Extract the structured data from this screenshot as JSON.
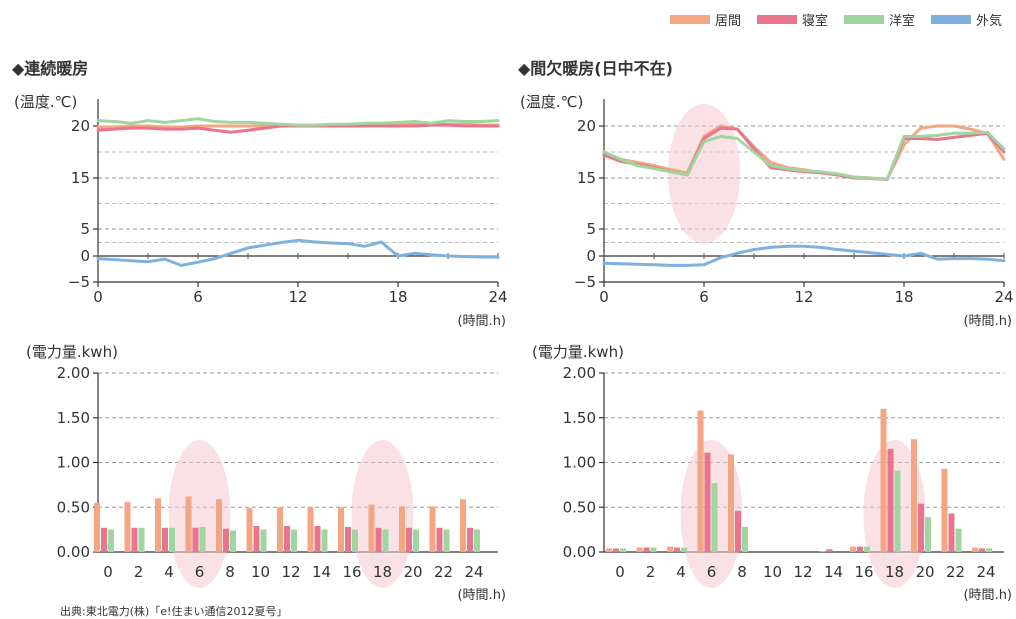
{
  "legend": {
    "items": [
      {
        "label": "居間",
        "color": "#f4a582"
      },
      {
        "label": "寝室",
        "color": "#e8748e"
      },
      {
        "label": "洋室",
        "color": "#9fd6a0"
      },
      {
        "label": "外気",
        "color": "#7fb0e0"
      }
    ]
  },
  "titles": {
    "left": "◆連続暖房",
    "right": "◆間欠暖房(日中不在)"
  },
  "source": "出典:東北電力(株)「e!住まい通信2012夏号」",
  "chart_data": [
    {
      "type": "line",
      "panel": "continuous-temperature",
      "ylabel": "(温度.℃)",
      "xlabel": "(時間.h)",
      "xlim": [
        0,
        24
      ],
      "x_ticks": [
        0,
        6,
        12,
        18,
        24
      ],
      "y_ticks": [
        -5,
        0,
        5,
        15,
        20
      ],
      "ylim": [
        -5,
        23
      ],
      "axis_break": [
        7,
        13
      ],
      "grid": true,
      "x": [
        0,
        1,
        2,
        3,
        4,
        5,
        6,
        7,
        8,
        9,
        10,
        11,
        12,
        13,
        14,
        15,
        16,
        17,
        18,
        19,
        20,
        21,
        22,
        23,
        24
      ],
      "series": [
        {
          "name": "居間",
          "color": "#f4a582",
          "values": [
            19.9,
            19.9,
            20.0,
            20.0,
            19.9,
            19.9,
            20.0,
            20.0,
            20.0,
            20.0,
            20.0,
            20.0,
            20.0,
            20.0,
            20.0,
            20.0,
            20.0,
            20.1,
            20.1,
            20.2,
            20.2,
            20.2,
            20.2,
            20.1,
            20.1
          ]
        },
        {
          "name": "寝室",
          "color": "#e8748e",
          "values": [
            19.6,
            19.7,
            19.8,
            19.8,
            19.7,
            19.7,
            19.8,
            19.6,
            19.4,
            19.6,
            19.8,
            20.0,
            20.0,
            20.0,
            20.0,
            20.0,
            20.0,
            20.0,
            20.0,
            20.0,
            20.1,
            20.1,
            20.0,
            20.0,
            20.0
          ]
        },
        {
          "name": "洋室",
          "color": "#9fd6a0",
          "values": [
            20.6,
            20.5,
            20.3,
            20.6,
            20.4,
            20.6,
            20.8,
            20.5,
            20.4,
            20.4,
            20.3,
            20.2,
            20.1,
            20.1,
            20.2,
            20.2,
            20.3,
            20.3,
            20.4,
            20.5,
            20.3,
            20.6,
            20.5,
            20.5,
            20.6
          ]
        },
        {
          "name": "外気",
          "color": "#7fb0e0",
          "values": [
            -0.5,
            -0.7,
            -0.9,
            -1.1,
            -0.6,
            -1.8,
            -1.2,
            -0.5,
            0.5,
            1.5,
            2.0,
            2.5,
            2.9,
            2.6,
            2.4,
            2.3,
            1.8,
            2.6,
            0.0,
            0.5,
            0.2,
            0.0,
            -0.1,
            -0.2,
            -0.2
          ]
        }
      ]
    },
    {
      "type": "line",
      "panel": "intermittent-temperature",
      "ylabel": "(温度.℃)",
      "xlabel": "(時間.h)",
      "xlim": [
        0,
        24
      ],
      "x_ticks": [
        0,
        6,
        12,
        18,
        24
      ],
      "y_ticks": [
        -5,
        0,
        5,
        15,
        20
      ],
      "ylim": [
        -5,
        23
      ],
      "axis_break": [
        7,
        13
      ],
      "grid": true,
      "x": [
        0,
        1,
        2,
        3,
        4,
        5,
        6,
        7,
        8,
        9,
        10,
        11,
        12,
        13,
        14,
        15,
        16,
        17,
        18,
        19,
        20,
        21,
        22,
        23,
        24
      ],
      "series": [
        {
          "name": "居間",
          "color": "#f4a582",
          "values": [
            17.3,
            16.8,
            16.5,
            16.2,
            15.8,
            15.5,
            19.0,
            20.0,
            19.7,
            18.0,
            16.5,
            16.0,
            15.8,
            15.5,
            15.3,
            15.1,
            15.0,
            14.8,
            18.2,
            19.8,
            20.0,
            20.0,
            19.7,
            19.3,
            16.8
          ]
        },
        {
          "name": "寝室",
          "color": "#e8748e",
          "values": [
            17.2,
            16.6,
            16.3,
            16.0,
            15.6,
            15.3,
            18.8,
            19.8,
            19.7,
            17.8,
            16.0,
            15.8,
            15.6,
            15.5,
            15.3,
            15.0,
            14.9,
            14.7,
            18.8,
            18.8,
            18.7,
            18.9,
            19.1,
            19.3,
            17.5
          ]
        },
        {
          "name": "洋室",
          "color": "#9fd6a0",
          "values": [
            17.5,
            16.8,
            16.2,
            15.9,
            15.6,
            15.3,
            18.5,
            19.0,
            18.8,
            17.5,
            16.2,
            15.9,
            15.7,
            15.6,
            15.4,
            15.1,
            14.9,
            14.8,
            19.0,
            19.0,
            19.1,
            19.3,
            19.3,
            19.4,
            17.8
          ]
        },
        {
          "name": "外気",
          "color": "#7fb0e0",
          "values": [
            -1.4,
            -1.5,
            -1.6,
            -1.7,
            -1.8,
            -1.8,
            -1.7,
            -0.3,
            0.5,
            1.2,
            1.6,
            1.8,
            1.8,
            1.6,
            1.2,
            0.9,
            0.6,
            0.3,
            0.0,
            0.5,
            -0.6,
            -0.5,
            -0.5,
            -0.6,
            -0.9
          ]
        }
      ]
    },
    {
      "type": "bar",
      "panel": "continuous-power",
      "ylabel": "(電力量.kwh)",
      "xlabel": "(時間.h)",
      "categories": [
        "0",
        "2",
        "4",
        "6",
        "8",
        "10",
        "12",
        "14",
        "16",
        "18",
        "20",
        "22",
        "24"
      ],
      "ylim": [
        0,
        2.0
      ],
      "y_ticks": [
        "0.00",
        "0.50",
        "1.00",
        "1.50",
        "2.00"
      ],
      "grid": true,
      "series": [
        {
          "name": "居間",
          "color": "#f4a582",
          "values": [
            0.55,
            0.56,
            0.6,
            0.62,
            0.59,
            0.49,
            0.5,
            0.5,
            0.5,
            0.53,
            0.51,
            0.51,
            0.59
          ]
        },
        {
          "name": "寝室",
          "color": "#e8748e",
          "values": [
            0.27,
            0.27,
            0.27,
            0.27,
            0.26,
            0.29,
            0.29,
            0.29,
            0.28,
            0.27,
            0.27,
            0.27,
            0.27
          ]
        },
        {
          "name": "洋室",
          "color": "#9fd6a0",
          "values": [
            0.25,
            0.27,
            0.27,
            0.28,
            0.24,
            0.25,
            0.25,
            0.25,
            0.25,
            0.25,
            0.25,
            0.25,
            0.25
          ]
        }
      ]
    },
    {
      "type": "bar",
      "panel": "intermittent-power",
      "ylabel": "(電力量.kwh)",
      "xlabel": "(時間.h)",
      "categories": [
        "0",
        "2",
        "4",
        "6",
        "8",
        "10",
        "12",
        "14",
        "16",
        "18",
        "20",
        "22",
        "24"
      ],
      "ylim": [
        0,
        2.0
      ],
      "y_ticks": [
        "0.00",
        "0.50",
        "1.00",
        "1.50",
        "2.00"
      ],
      "grid": true,
      "series": [
        {
          "name": "居間",
          "color": "#f4a582",
          "values": [
            0.04,
            0.05,
            0.06,
            1.58,
            1.09,
            0.0,
            0.0,
            0.01,
            0.06,
            1.6,
            1.26,
            0.93,
            0.05
          ]
        },
        {
          "name": "寝室",
          "color": "#e8748e",
          "values": [
            0.04,
            0.05,
            0.05,
            1.11,
            0.46,
            0.0,
            0.0,
            0.03,
            0.06,
            1.15,
            0.54,
            0.43,
            0.04
          ]
        },
        {
          "name": "洋室",
          "color": "#9fd6a0",
          "values": [
            0.04,
            0.05,
            0.05,
            0.77,
            0.28,
            0.0,
            0.0,
            0.0,
            0.06,
            0.91,
            0.39,
            0.26,
            0.04
          ]
        }
      ]
    }
  ],
  "highlights": {
    "intermittent-temperature": [
      6
    ],
    "continuous-power": [
      6,
      18
    ],
    "intermittent-power": [
      6,
      18
    ]
  }
}
